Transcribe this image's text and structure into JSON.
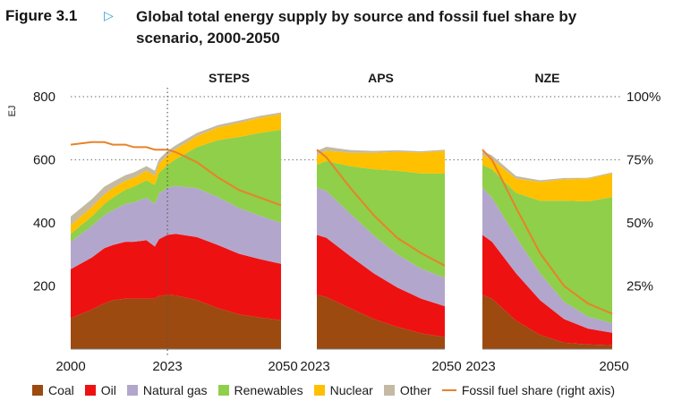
{
  "figure": {
    "label": "Figure 3.1",
    "title": "Global total energy supply by source and fossil fuel share by scenario, 2000-2050"
  },
  "chart_data": {
    "type": "area",
    "ylabel": "EJ",
    "ylabel_right": "",
    "ylim": [
      0,
      800
    ],
    "yticks": [
      200,
      400,
      600,
      800
    ],
    "ylim_right": [
      0,
      100
    ],
    "yticks_right": [
      "25%",
      "50%",
      "75%",
      "100%"
    ],
    "grid": "dotted horizontal at 600 and 800",
    "legend_position": "bottom",
    "series_info": [
      {
        "name": "Coal",
        "color": "#9c4a10"
      },
      {
        "name": "Oil",
        "color": "#ee1111"
      },
      {
        "name": "Natural gas",
        "color": "#b3a6cc"
      },
      {
        "name": "Renewables",
        "color": "#8fcf4a"
      },
      {
        "name": "Nuclear",
        "color": "#ffc000"
      },
      {
        "name": "Other",
        "color": "#c4b9a3"
      }
    ],
    "line_series": {
      "name": "Fossil fuel share (right axis)",
      "color": "#e8822a"
    },
    "panels": [
      {
        "title": "STEPS",
        "x_start_label": "2000",
        "x_mid_label": "2023",
        "x_end_label": "2050",
        "x": [
          2000,
          2005,
          2008,
          2010,
          2013,
          2015,
          2018,
          2020,
          2021,
          2023,
          2025,
          2030,
          2035,
          2040,
          2045,
          2050
        ],
        "series": [
          {
            "name": "Coal",
            "values": [
              98,
              125,
              145,
              155,
              160,
              160,
              160,
              160,
              168,
              172,
              170,
              155,
              130,
              110,
              100,
              92
            ]
          },
          {
            "name": "Oil",
            "values": [
              155,
              165,
              175,
              175,
              180,
              180,
              185,
              165,
              180,
              190,
              195,
              200,
              200,
              192,
              185,
              178
            ]
          },
          {
            "name": "Natural gas",
            "values": [
              87,
              100,
              105,
              110,
              120,
              125,
              135,
              135,
              145,
              150,
              152,
              155,
              152,
              145,
              138,
              130
            ]
          },
          {
            "name": "Renewables",
            "values": [
              25,
              30,
              35,
              40,
              45,
              50,
              55,
              60,
              65,
              72,
              85,
              130,
              180,
              225,
              262,
              295
            ]
          },
          {
            "name": "Nuclear",
            "values": [
              28,
              30,
              30,
              30,
              28,
              28,
              30,
              30,
              30,
              30,
              32,
              35,
              40,
              45,
              48,
              50
            ]
          },
          {
            "name": "Other",
            "values": [
              27,
              25,
              25,
              20,
              18,
              17,
              15,
              15,
              14,
              14,
              12,
              10,
              8,
              7,
              6,
              5
            ]
          }
        ],
        "fossil_share": [
          81,
          82,
          82,
          81,
          81,
          80,
          80,
          79,
          79,
          79,
          78,
          74,
          68,
          63,
          60,
          57
        ]
      },
      {
        "title": "APS",
        "x_start_label": "2023",
        "x_end_label": "2050",
        "x": [
          2023,
          2025,
          2030,
          2035,
          2040,
          2045,
          2050
        ],
        "series": [
          {
            "name": "Coal",
            "values": [
              172,
              165,
              130,
              95,
              70,
              50,
              38
            ]
          },
          {
            "name": "Oil",
            "values": [
              190,
              188,
              165,
              145,
              125,
              110,
              98
            ]
          },
          {
            "name": "Natural gas",
            "values": [
              150,
              148,
              135,
              120,
              105,
              95,
              90
            ]
          },
          {
            "name": "Renewables",
            "values": [
              72,
              95,
              150,
              210,
              265,
              302,
              330
            ]
          },
          {
            "name": "Nuclear",
            "values": [
              30,
              33,
              42,
              52,
              60,
              66,
              72
            ]
          },
          {
            "name": "Other",
            "values": [
              14,
              12,
              9,
              6,
              5,
              4,
              4
            ]
          }
        ],
        "fossil_share": [
          79,
          76,
          64,
          53,
          44,
          38,
          33
        ]
      },
      {
        "title": "NZE",
        "x_start_label": "2023",
        "x_end_label": "2050",
        "x": [
          2023,
          2025,
          2030,
          2035,
          2040,
          2045,
          2050
        ],
        "series": [
          {
            "name": "Coal",
            "values": [
              172,
              160,
              90,
              45,
              20,
              15,
              12
            ]
          },
          {
            "name": "Oil",
            "values": [
              190,
              180,
              150,
              110,
              75,
              50,
              40
            ]
          },
          {
            "name": "Natural gas",
            "values": [
              150,
              140,
              115,
              85,
              55,
              38,
              30
            ]
          },
          {
            "name": "Renewables",
            "values": [
              72,
              90,
              140,
              230,
              320,
              365,
              400
            ]
          },
          {
            "name": "Nuclear",
            "values": [
              30,
              32,
              45,
              60,
              68,
              72,
              75
            ]
          },
          {
            "name": "Other",
            "values": [
              14,
              12,
              8,
              5,
              4,
              3,
              3
            ]
          }
        ],
        "fossil_share": [
          79,
          75,
          56,
          38,
          25,
          18,
          14
        ]
      }
    ],
    "marker_year": "2023"
  }
}
